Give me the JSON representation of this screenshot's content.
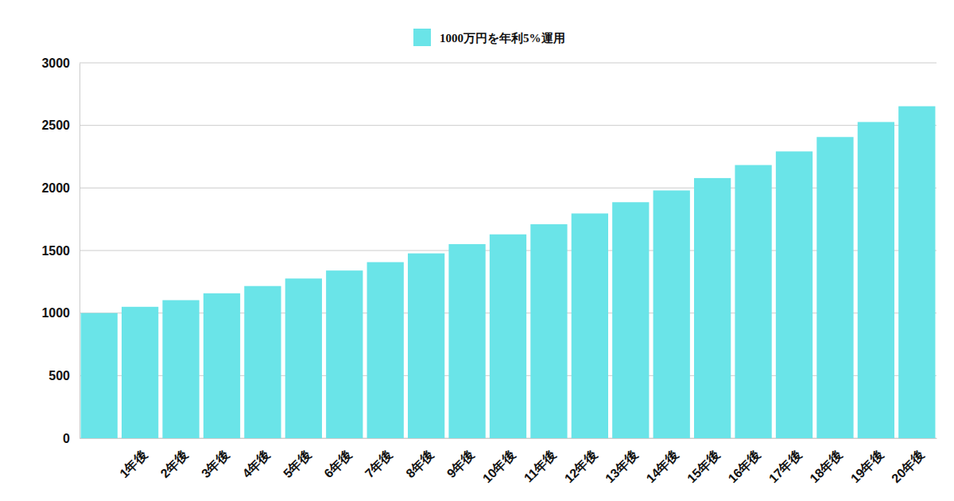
{
  "chart_data": {
    "type": "bar",
    "categories": [
      null,
      "1年後",
      "2年後",
      "3年後",
      "4年後",
      "5年後",
      "6年後",
      "7年後",
      "8年後",
      "9年後",
      "10年後",
      "11年後",
      "12年後",
      "13年後",
      "14年後",
      "15年後",
      "16年後",
      "17年後",
      "18年後",
      "19年後",
      "20年後"
    ],
    "series": [
      {
        "name": "1000万円を年利5%運用",
        "color": "#6ae4e8",
        "values": [
          1000,
          1050,
          1103,
          1158,
          1216,
          1276,
          1340,
          1407,
          1477,
          1551,
          1629,
          1710,
          1796,
          1886,
          1980,
          2079,
          2183,
          2292,
          2407,
          2527,
          2653
        ]
      }
    ],
    "ylim": [
      0,
      3000
    ],
    "yticks": [
      0,
      500,
      1000,
      1500,
      2000,
      2500,
      3000
    ],
    "grid": true,
    "legend": "top"
  }
}
